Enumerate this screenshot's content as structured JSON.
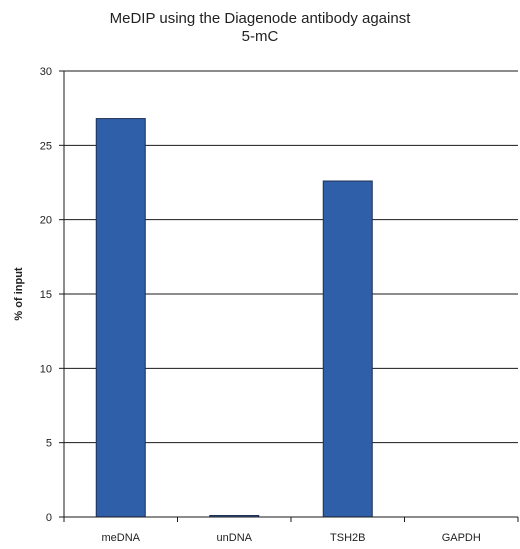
{
  "chart_data": {
    "type": "bar",
    "title_line1": "MeDIP using the Diagenode antibody against",
    "title_line2": "5-mC",
    "xlabel": "",
    "ylabel": "% of input",
    "categories": [
      "meDNA",
      "unDNA",
      "TSH2B",
      "GAPDH"
    ],
    "values": [
      26.8,
      0.1,
      22.6,
      0.0
    ],
    "ylim": [
      0,
      30
    ],
    "yticks": [
      0,
      5,
      10,
      15,
      20,
      25,
      30
    ],
    "grid": true,
    "bar_color": "#2e5fa8"
  }
}
